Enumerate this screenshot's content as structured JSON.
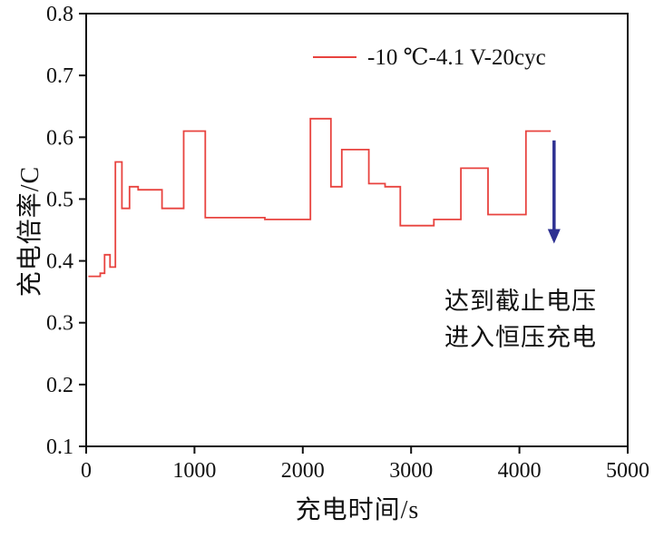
{
  "figure": {
    "background": "#ffffff",
    "axis_color": "#111111"
  },
  "chart_data": {
    "type": "line",
    "line_style": "step-post",
    "title": "",
    "xlabel": "充电时间/s",
    "ylabel": "充电倍率/C",
    "xlim": [
      0,
      5000
    ],
    "ylim": [
      0.1,
      0.8
    ],
    "xticks": [
      0,
      1000,
      2000,
      3000,
      4000,
      5000
    ],
    "yticks": [
      0.1,
      0.2,
      0.3,
      0.4,
      0.5,
      0.6,
      0.7,
      0.8
    ],
    "grid": false,
    "legend_position": "top-center",
    "series": [
      {
        "name": "-10 ℃-4.1 V-20cyc",
        "color": "#e8433f",
        "steps": [
          [
            20,
            0.375
          ],
          [
            130,
            0.38
          ],
          [
            170,
            0.41
          ],
          [
            220,
            0.39
          ],
          [
            270,
            0.56
          ],
          [
            330,
            0.485
          ],
          [
            400,
            0.52
          ],
          [
            480,
            0.515
          ],
          [
            700,
            0.485
          ],
          [
            900,
            0.61
          ],
          [
            1100,
            0.47
          ],
          [
            1650,
            0.467
          ],
          [
            2070,
            0.63
          ],
          [
            2260,
            0.52
          ],
          [
            2360,
            0.58
          ],
          [
            2610,
            0.525
          ],
          [
            2760,
            0.52
          ],
          [
            2900,
            0.457
          ],
          [
            3210,
            0.467
          ],
          [
            3460,
            0.55
          ],
          [
            3710,
            0.475
          ],
          [
            4060,
            0.61
          ]
        ],
        "end_x": 4290
      }
    ],
    "annotation": {
      "lines": [
        "达到截止电压",
        "进入恒压充电"
      ],
      "arrow": {
        "x": 4320,
        "y_from": 0.595,
        "y_to": 0.428,
        "color": "#2e3192"
      }
    }
  }
}
